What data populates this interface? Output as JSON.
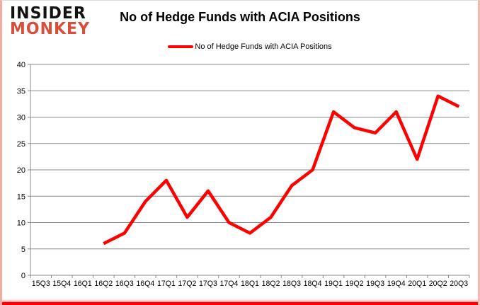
{
  "logo": {
    "line1": "INSIDER",
    "line2": "MONKEY"
  },
  "header": {
    "title": "No of Hedge Funds with ACIA Positions"
  },
  "legend": {
    "label": "No of Hedge Funds with ACIA Positions"
  },
  "colors": {
    "line": "#ff0000",
    "grid": "#898989",
    "axis": "#898989",
    "text": "#000000",
    "logo_red": "#d94e3b"
  },
  "chart_data": {
    "type": "line",
    "title": "No of Hedge Funds with ACIA Positions",
    "categories": [
      "15Q3",
      "15Q4",
      "16Q1",
      "16Q2",
      "16Q3",
      "16Q4",
      "17Q1",
      "17Q2",
      "17Q3",
      "17Q4",
      "18Q1",
      "18Q2",
      "18Q3",
      "18Q4",
      "19Q1",
      "19Q2",
      "19Q3",
      "19Q4",
      "20Q1",
      "20Q2",
      "20Q3"
    ],
    "series": [
      {
        "name": "No of Hedge Funds with ACIA Positions",
        "color": "#ff0000",
        "values": [
          null,
          null,
          null,
          6,
          8,
          14,
          18,
          11,
          16,
          10,
          8,
          11,
          17,
          20,
          31,
          28,
          27,
          31,
          22,
          34,
          32
        ]
      }
    ],
    "xlabel": "",
    "ylabel": "",
    "ylim": [
      0,
      40
    ],
    "ytick_step": 5,
    "grid": true,
    "legend_position": "top"
  }
}
